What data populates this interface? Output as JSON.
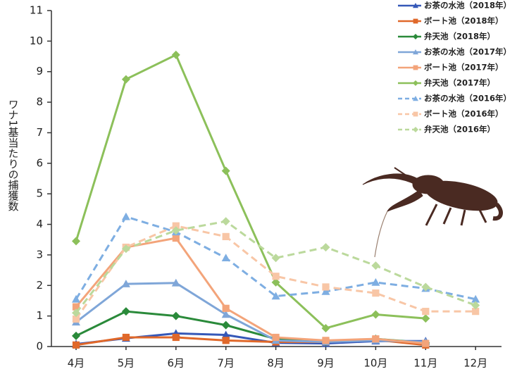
{
  "chart_data": {
    "type": "line",
    "y_label": "ワナ1基当たりの捕獲数",
    "categories": [
      "4月",
      "5月",
      "6月",
      "7月",
      "8月",
      "9月",
      "10月",
      "11月",
      "12月"
    ],
    "ylim": [
      0,
      11
    ],
    "yticks": [
      0,
      1,
      2,
      3,
      4,
      5,
      6,
      7,
      8,
      9,
      10,
      11
    ],
    "series": [
      {
        "name": "お茶の水池（2018年）",
        "color": "#3558b8",
        "marker": "triangle",
        "dashed": false,
        "values": [
          0.08,
          0.27,
          0.43,
          0.38,
          0.12,
          0.1,
          0.18,
          0.18,
          null
        ]
      },
      {
        "name": "ボート池（2018年）",
        "color": "#e0682a",
        "marker": "square",
        "dashed": false,
        "values": [
          0.05,
          0.3,
          0.3,
          0.2,
          0.15,
          0.15,
          0.22,
          0.05,
          null
        ]
      },
      {
        "name": "弁天池（2018年）",
        "color": "#2a8a3a",
        "marker": "diamond",
        "dashed": false,
        "values": [
          0.35,
          1.15,
          1.0,
          0.7,
          0.25,
          0.15,
          0.25,
          0.12,
          null
        ]
      },
      {
        "name": "お茶の水池（2017年）",
        "color": "#7fa6d8",
        "marker": "triangle",
        "dashed": false,
        "values": [
          0.8,
          2.05,
          2.08,
          1.05,
          0.2,
          0.15,
          0.2,
          0.15,
          null
        ]
      },
      {
        "name": "ボート池（2017年）",
        "color": "#f3a47a",
        "marker": "square",
        "dashed": false,
        "values": [
          1.3,
          3.25,
          3.55,
          1.25,
          0.3,
          0.2,
          0.25,
          0.1,
          null
        ]
      },
      {
        "name": "弁天池（2017年）",
        "color": "#8cc05a",
        "marker": "diamond",
        "dashed": false,
        "values": [
          3.45,
          8.75,
          9.55,
          5.75,
          2.1,
          0.6,
          1.05,
          0.92,
          null
        ]
      },
      {
        "name": "お茶の水池（2016年）",
        "color": "#7eaee2",
        "marker": "triangle",
        "dashed": true,
        "values": [
          1.55,
          4.25,
          3.75,
          2.9,
          1.65,
          1.8,
          2.1,
          1.9,
          1.55
        ]
      },
      {
        "name": "ボート池（2016年）",
        "color": "#f8c6a6",
        "marker": "square",
        "dashed": true,
        "values": [
          0.9,
          3.25,
          3.95,
          3.6,
          2.3,
          1.95,
          1.75,
          1.15,
          1.15
        ]
      },
      {
        "name": "弁天池（2016年）",
        "color": "#bbd99c",
        "marker": "diamond",
        "dashed": true,
        "values": [
          1.1,
          3.2,
          3.8,
          4.1,
          2.9,
          3.25,
          2.65,
          1.95,
          1.35
        ]
      }
    ]
  }
}
